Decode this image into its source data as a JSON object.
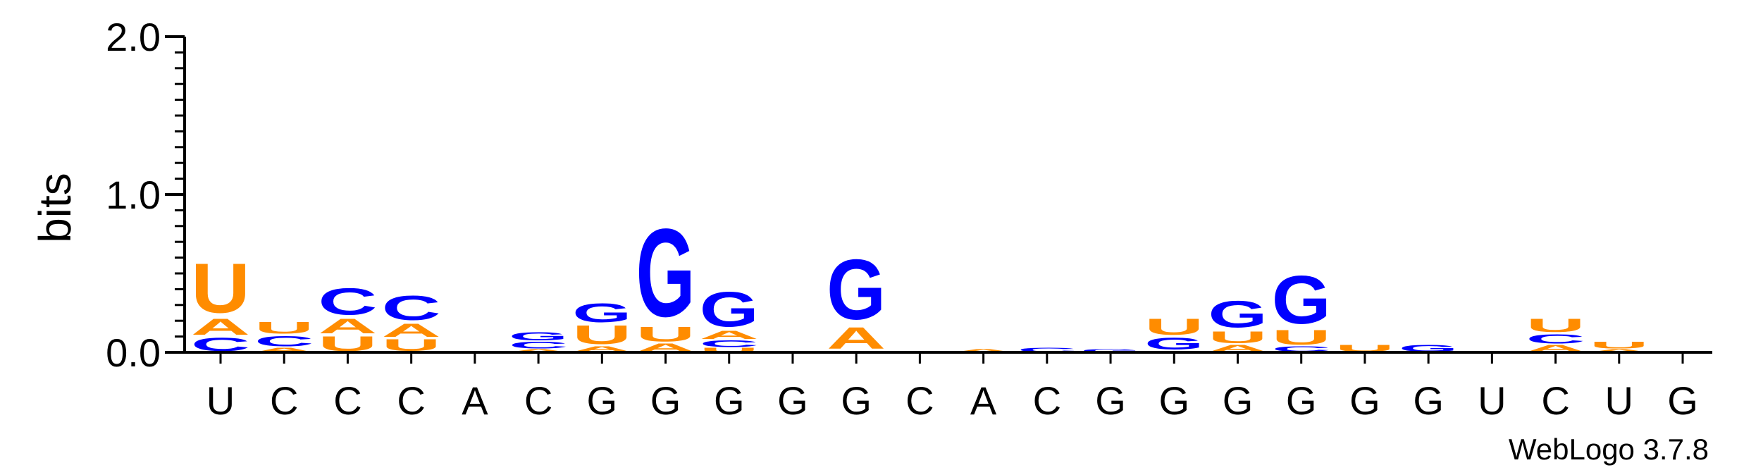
{
  "chart_data": {
    "type": "sequence-logo",
    "ylabel": "bits",
    "ylim": [
      0,
      2.0
    ],
    "yticks": [
      "0.0",
      "1.0",
      "2.0"
    ],
    "x_labels": [
      "U",
      "C",
      "C",
      "C",
      "A",
      "C",
      "G",
      "G",
      "G",
      "G",
      "G",
      "C",
      "A",
      "C",
      "G",
      "G",
      "G",
      "G",
      "G",
      "G",
      "U",
      "C",
      "U",
      "G"
    ],
    "colors": {
      "U": "#ff8c00",
      "A": "#ff8c00",
      "C": "#0000ff",
      "G": "#0000ff"
    },
    "columns": [
      [
        {
          "l": "C",
          "v": 0.1
        },
        {
          "l": "A",
          "v": 0.12
        },
        {
          "l": "U",
          "v": 0.37
        }
      ],
      [
        {
          "l": "A",
          "v": 0.03
        },
        {
          "l": "C",
          "v": 0.08
        },
        {
          "l": "U",
          "v": 0.09
        }
      ],
      [
        {
          "l": "U",
          "v": 0.11
        },
        {
          "l": "A",
          "v": 0.11
        },
        {
          "l": "C",
          "v": 0.2
        }
      ],
      [
        {
          "l": "U",
          "v": 0.09
        },
        {
          "l": "A",
          "v": 0.1
        },
        {
          "l": "C",
          "v": 0.18
        }
      ],
      [
        {
          "l": "A",
          "v": 0.01
        }
      ],
      [
        {
          "l": "A",
          "v": 0.02
        },
        {
          "l": "C",
          "v": 0.05
        },
        {
          "l": "G",
          "v": 0.06
        }
      ],
      [
        {
          "l": "A",
          "v": 0.04
        },
        {
          "l": "U",
          "v": 0.14
        },
        {
          "l": "G",
          "v": 0.14
        }
      ],
      [
        {
          "l": "A",
          "v": 0.06
        },
        {
          "l": "U",
          "v": 0.11
        },
        {
          "l": "G",
          "v": 0.66
        }
      ],
      [
        {
          "l": "U",
          "v": 0.03
        },
        {
          "l": "C",
          "v": 0.05
        },
        {
          "l": "A",
          "v": 0.06
        },
        {
          "l": "G",
          "v": 0.26
        }
      ],
      [],
      [
        {
          "l": "U",
          "v": 0.01
        },
        {
          "l": "A",
          "v": 0.16
        },
        {
          "l": "G",
          "v": 0.45
        }
      ],
      [],
      [
        {
          "l": "A",
          "v": 0.02
        }
      ],
      [
        {
          "l": "C",
          "v": 0.03
        }
      ],
      [
        {
          "l": "G",
          "v": 0.02
        }
      ],
      [
        {
          "l": "C",
          "v": 0.01
        },
        {
          "l": "G",
          "v": 0.09
        },
        {
          "l": "U",
          "v": 0.12
        }
      ],
      [
        {
          "l": "A",
          "v": 0.05
        },
        {
          "l": "U",
          "v": 0.09
        },
        {
          "l": "G",
          "v": 0.2
        }
      ],
      [
        {
          "l": "C",
          "v": 0.04
        },
        {
          "l": "U",
          "v": 0.11
        },
        {
          "l": "G",
          "v": 0.36
        }
      ],
      [
        {
          "l": "U",
          "v": 0.05
        }
      ],
      [
        {
          "l": "G",
          "v": 0.05
        }
      ],
      [],
      [
        {
          "l": "A",
          "v": 0.05
        },
        {
          "l": "C",
          "v": 0.07
        },
        {
          "l": "U",
          "v": 0.1
        }
      ],
      [
        {
          "l": "A",
          "v": 0.02
        },
        {
          "l": "U",
          "v": 0.05
        }
      ],
      []
    ]
  },
  "credit": "WebLogo 3.7.8"
}
